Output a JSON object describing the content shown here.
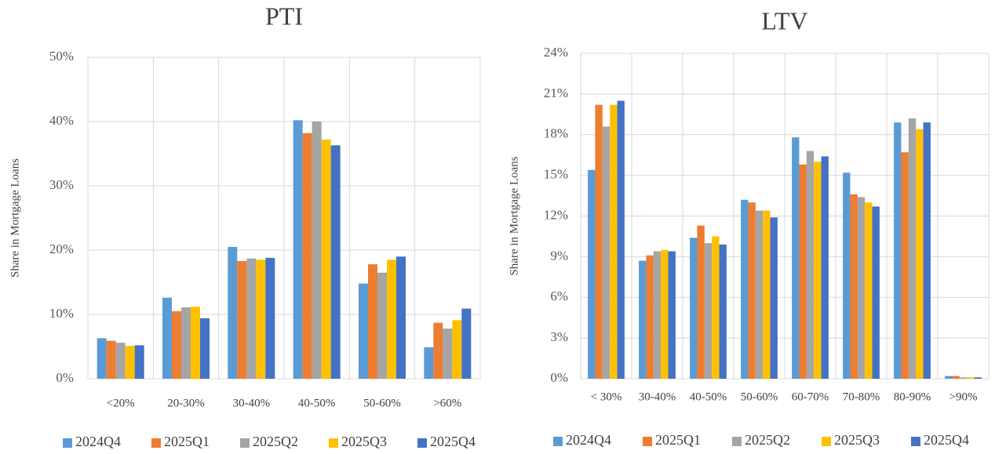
{
  "chart_data": [
    {
      "type": "bar",
      "title": "PTI",
      "y_label": "Share in Mortgage Loans",
      "categories": [
        "<20%",
        "20-30%",
        "30-40%",
        "40-50%",
        "50-60%",
        ">60%"
      ],
      "series": [
        {
          "name": "2024Q4",
          "color": "#5b9bd5",
          "values": [
            6.3,
            12.6,
            20.5,
            40.2,
            14.8,
            4.9
          ]
        },
        {
          "name": "2025Q1",
          "color": "#ed7d31",
          "values": [
            5.9,
            10.5,
            18.3,
            38.2,
            17.8,
            8.7
          ]
        },
        {
          "name": "2025Q2",
          "color": "#a5a5a5",
          "values": [
            5.6,
            11.1,
            18.7,
            40.0,
            16.5,
            7.8
          ]
        },
        {
          "name": "2025Q3",
          "color": "#ffc000",
          "values": [
            5.1,
            11.2,
            18.5,
            37.2,
            18.5,
            9.1
          ]
        },
        {
          "name": "2025Q4",
          "color": "#4472c4",
          "values": [
            5.2,
            9.4,
            18.8,
            36.3,
            19.0,
            10.9
          ]
        }
      ],
      "ylim": [
        0,
        50
      ],
      "yticks": [
        {
          "value": 0,
          "label": "0%"
        },
        {
          "value": 10,
          "label": "10%"
        },
        {
          "value": 20,
          "label": "20%"
        },
        {
          "value": 30,
          "label": "30%"
        },
        {
          "value": 40,
          "label": "40%"
        },
        {
          "value": 50,
          "label": "50%"
        }
      ],
      "grid": true,
      "legend": "bottom"
    },
    {
      "type": "bar",
      "title": "LTV",
      "y_label": "Share in Mortgage Loans",
      "categories": [
        "< 30%",
        "30-40%",
        "40-50%",
        "50-60%",
        "60-70%",
        "70-80%",
        "80-90%",
        ">90%"
      ],
      "series": [
        {
          "name": "2024Q4",
          "color": "#5b9bd5",
          "values": [
            15.4,
            8.7,
            10.4,
            13.2,
            17.8,
            15.2,
            18.9,
            0.2
          ]
        },
        {
          "name": "2025Q1",
          "color": "#ed7d31",
          "values": [
            20.2,
            9.1,
            11.3,
            13.0,
            15.8,
            13.6,
            16.7,
            0.2
          ]
        },
        {
          "name": "2025Q2",
          "color": "#a5a5a5",
          "values": [
            18.6,
            9.4,
            10.0,
            12.4,
            16.8,
            13.4,
            19.2,
            0.1
          ]
        },
        {
          "name": "2025Q3",
          "color": "#ffc000",
          "values": [
            20.2,
            9.5,
            10.5,
            12.4,
            16.0,
            13.0,
            18.4,
            0.1
          ]
        },
        {
          "name": "2025Q4",
          "color": "#4472c4",
          "values": [
            20.5,
            9.4,
            9.9,
            11.9,
            16.4,
            12.7,
            18.9,
            0.1
          ]
        }
      ],
      "ylim": [
        0,
        24
      ],
      "yticks": [
        {
          "value": 0,
          "label": "0%"
        },
        {
          "value": 3,
          "label": "3%"
        },
        {
          "value": 6,
          "label": "6%"
        },
        {
          "value": 9,
          "label": "9%"
        },
        {
          "value": 12,
          "label": "12%"
        },
        {
          "value": 15,
          "label": "15%"
        },
        {
          "value": 18,
          "label": "18%"
        },
        {
          "value": 21,
          "label": "21%"
        },
        {
          "value": 24,
          "label": "24%"
        }
      ],
      "grid": true,
      "legend": "bottom"
    }
  ]
}
